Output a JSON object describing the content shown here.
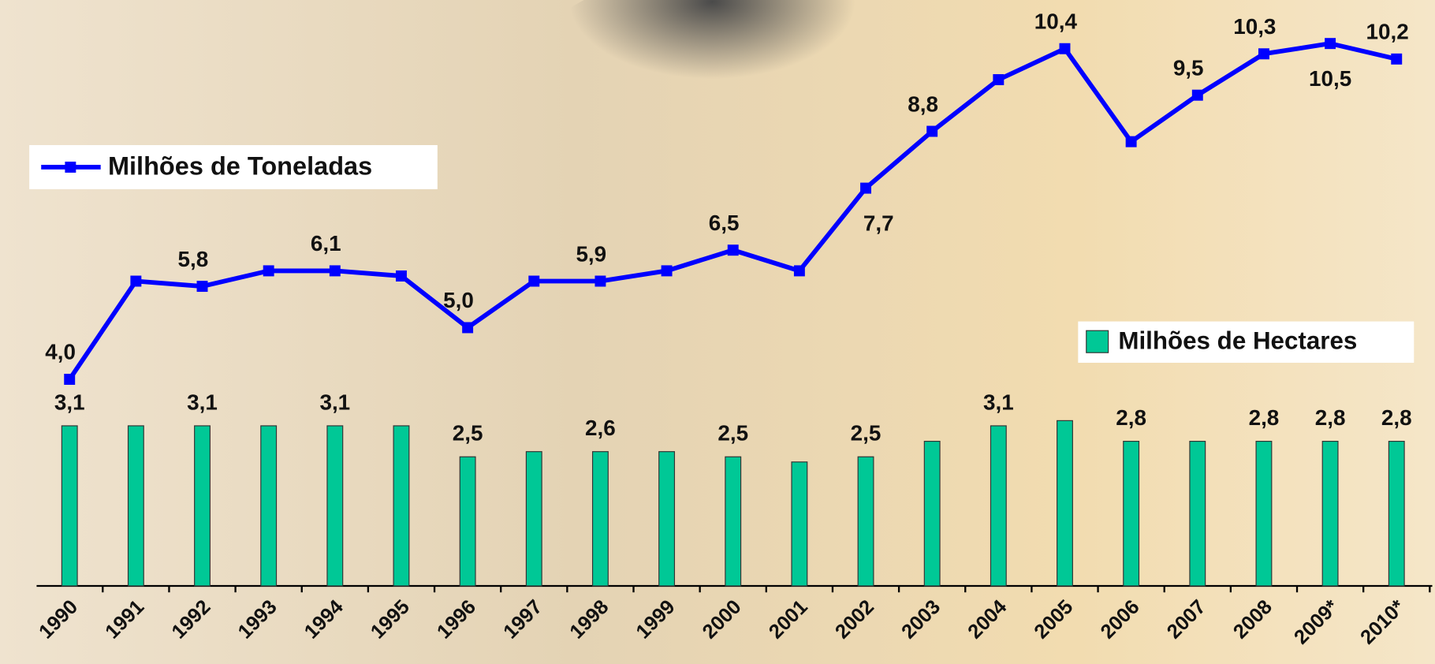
{
  "chart_data": {
    "type": "combo",
    "categories": [
      "1990",
      "1991",
      "1992",
      "1993",
      "1994",
      "1995",
      "1996",
      "1997",
      "1998",
      "1999",
      "2000",
      "2001",
      "2002",
      "2003",
      "2004",
      "2005",
      "2006",
      "2007",
      "2008",
      "2009*",
      "2010*"
    ],
    "ylim": [
      0,
      11.2
    ],
    "series": [
      {
        "name": "Milhões de Hectares",
        "type": "bar",
        "color": "#00c896",
        "values": [
          3.1,
          3.1,
          3.1,
          3.1,
          3.1,
          3.1,
          2.5,
          2.6,
          2.6,
          2.6,
          2.5,
          2.4,
          2.5,
          2.8,
          3.1,
          3.2,
          2.8,
          2.8,
          2.8,
          2.8,
          2.8
        ],
        "value_labels": [
          "3,1",
          null,
          "3,1",
          null,
          "3,1",
          null,
          "2,5",
          null,
          "2,6",
          null,
          "2,5",
          null,
          "2,5",
          null,
          "3,1",
          null,
          "2,8",
          null,
          "2,8",
          "2,8",
          "2,8"
        ]
      },
      {
        "name": "Milhões de Toneladas",
        "type": "line",
        "color": "#0000ff",
        "values": [
          4.0,
          5.9,
          5.8,
          6.1,
          6.1,
          6.0,
          5.0,
          5.9,
          5.9,
          6.1,
          6.5,
          6.1,
          7.7,
          8.8,
          9.8,
          10.4,
          8.6,
          9.5,
          10.3,
          10.5,
          10.2
        ],
        "value_labels": [
          "4,0",
          null,
          "5,8",
          null,
          "6,1",
          null,
          "5,0",
          null,
          "5,9",
          null,
          "6,5",
          null,
          "7,7",
          "8,8",
          null,
          "10,4",
          null,
          "9,5",
          "10,3",
          "10,5",
          "10,2"
        ]
      }
    ]
  }
}
